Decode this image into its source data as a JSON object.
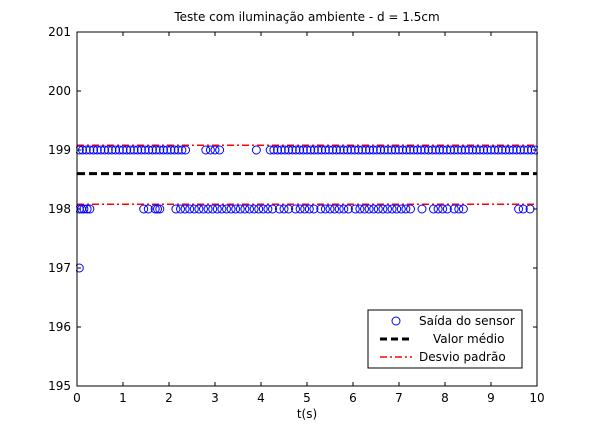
{
  "chart_data": {
    "type": "scatter",
    "title": "Teste com iluminação ambiente - d = 1.5cm",
    "xlabel": "t(s)",
    "ylabel": "",
    "xlim": [
      0,
      10
    ],
    "ylim": [
      195,
      201
    ],
    "xticks": [
      0,
      1,
      2,
      3,
      4,
      5,
      6,
      7,
      8,
      9,
      10
    ],
    "yticks": [
      195,
      196,
      197,
      198,
      199,
      200,
      201
    ],
    "grid": false,
    "legend_position": "bottom-right",
    "series": [
      {
        "name": "Saída do sensor",
        "kind": "markers",
        "marker": "circle",
        "color": "#0000ff",
        "points": [
          {
            "x": 0.05,
            "y": 197
          },
          {
            "x": 0.05,
            "y": 198
          },
          {
            "x": 0.1,
            "y": 198
          },
          {
            "x": 0.15,
            "y": 198
          },
          {
            "x": 0.22,
            "y": 198
          },
          {
            "x": 0.28,
            "y": 198
          },
          {
            "x": 1.45,
            "y": 198
          },
          {
            "x": 1.55,
            "y": 198
          },
          {
            "x": 1.7,
            "y": 198
          },
          {
            "x": 1.75,
            "y": 198
          },
          {
            "x": 1.8,
            "y": 198
          },
          {
            "x": 2.15,
            "y": 198
          },
          {
            "x": 2.25,
            "y": 198
          },
          {
            "x": 2.35,
            "y": 198
          },
          {
            "x": 2.45,
            "y": 198
          },
          {
            "x": 2.55,
            "y": 198
          },
          {
            "x": 2.65,
            "y": 198
          },
          {
            "x": 2.75,
            "y": 198
          },
          {
            "x": 2.85,
            "y": 198
          },
          {
            "x": 2.95,
            "y": 198
          },
          {
            "x": 3.05,
            "y": 198
          },
          {
            "x": 3.15,
            "y": 198
          },
          {
            "x": 3.25,
            "y": 198
          },
          {
            "x": 3.35,
            "y": 198
          },
          {
            "x": 3.45,
            "y": 198
          },
          {
            "x": 3.55,
            "y": 198
          },
          {
            "x": 3.65,
            "y": 198
          },
          {
            "x": 3.75,
            "y": 198
          },
          {
            "x": 3.85,
            "y": 198
          },
          {
            "x": 3.95,
            "y": 198
          },
          {
            "x": 4.05,
            "y": 198
          },
          {
            "x": 4.15,
            "y": 198
          },
          {
            "x": 4.25,
            "y": 198
          },
          {
            "x": 4.4,
            "y": 198
          },
          {
            "x": 4.5,
            "y": 198
          },
          {
            "x": 4.6,
            "y": 198
          },
          {
            "x": 4.75,
            "y": 198
          },
          {
            "x": 4.85,
            "y": 198
          },
          {
            "x": 4.95,
            "y": 198
          },
          {
            "x": 5.05,
            "y": 198
          },
          {
            "x": 5.15,
            "y": 198
          },
          {
            "x": 5.3,
            "y": 198
          },
          {
            "x": 5.4,
            "y": 198
          },
          {
            "x": 5.5,
            "y": 198
          },
          {
            "x": 5.6,
            "y": 198
          },
          {
            "x": 5.7,
            "y": 198
          },
          {
            "x": 5.8,
            "y": 198
          },
          {
            "x": 5.9,
            "y": 198
          },
          {
            "x": 6.05,
            "y": 198
          },
          {
            "x": 6.15,
            "y": 198
          },
          {
            "x": 6.25,
            "y": 198
          },
          {
            "x": 6.35,
            "y": 198
          },
          {
            "x": 6.45,
            "y": 198
          },
          {
            "x": 6.55,
            "y": 198
          },
          {
            "x": 6.65,
            "y": 198
          },
          {
            "x": 6.75,
            "y": 198
          },
          {
            "x": 6.85,
            "y": 198
          },
          {
            "x": 6.95,
            "y": 198
          },
          {
            "x": 7.05,
            "y": 198
          },
          {
            "x": 7.15,
            "y": 198
          },
          {
            "x": 7.25,
            "y": 198
          },
          {
            "x": 7.5,
            "y": 198
          },
          {
            "x": 7.75,
            "y": 198
          },
          {
            "x": 7.85,
            "y": 198
          },
          {
            "x": 7.95,
            "y": 198
          },
          {
            "x": 8.05,
            "y": 198
          },
          {
            "x": 8.2,
            "y": 198
          },
          {
            "x": 8.3,
            "y": 198
          },
          {
            "x": 8.4,
            "y": 198
          },
          {
            "x": 9.6,
            "y": 198
          },
          {
            "x": 9.7,
            "y": 198
          },
          {
            "x": 9.85,
            "y": 198
          },
          {
            "x": 0.05,
            "y": 199
          },
          {
            "x": 0.12,
            "y": 199
          },
          {
            "x": 0.2,
            "y": 199
          },
          {
            "x": 0.28,
            "y": 199
          },
          {
            "x": 0.36,
            "y": 199
          },
          {
            "x": 0.44,
            "y": 199
          },
          {
            "x": 0.52,
            "y": 199
          },
          {
            "x": 0.6,
            "y": 199
          },
          {
            "x": 0.68,
            "y": 199
          },
          {
            "x": 0.76,
            "y": 199
          },
          {
            "x": 0.84,
            "y": 199
          },
          {
            "x": 0.92,
            "y": 199
          },
          {
            "x": 1.0,
            "y": 199
          },
          {
            "x": 1.08,
            "y": 199
          },
          {
            "x": 1.16,
            "y": 199
          },
          {
            "x": 1.24,
            "y": 199
          },
          {
            "x": 1.32,
            "y": 199
          },
          {
            "x": 1.4,
            "y": 199
          },
          {
            "x": 1.48,
            "y": 199
          },
          {
            "x": 1.56,
            "y": 199
          },
          {
            "x": 1.64,
            "y": 199
          },
          {
            "x": 1.72,
            "y": 199
          },
          {
            "x": 1.8,
            "y": 199
          },
          {
            "x": 1.88,
            "y": 199
          },
          {
            "x": 1.96,
            "y": 199
          },
          {
            "x": 2.04,
            "y": 199
          },
          {
            "x": 2.12,
            "y": 199
          },
          {
            "x": 2.2,
            "y": 199
          },
          {
            "x": 2.28,
            "y": 199
          },
          {
            "x": 2.36,
            "y": 199
          },
          {
            "x": 2.8,
            "y": 199
          },
          {
            "x": 2.9,
            "y": 199
          },
          {
            "x": 3.0,
            "y": 199
          },
          {
            "x": 3.1,
            "y": 199
          },
          {
            "x": 3.9,
            "y": 199
          },
          {
            "x": 4.2,
            "y": 199
          },
          {
            "x": 4.28,
            "y": 199
          },
          {
            "x": 4.36,
            "y": 199
          },
          {
            "x": 4.44,
            "y": 199
          },
          {
            "x": 4.52,
            "y": 199
          },
          {
            "x": 4.6,
            "y": 199
          },
          {
            "x": 4.68,
            "y": 199
          },
          {
            "x": 4.76,
            "y": 199
          },
          {
            "x": 4.84,
            "y": 199
          },
          {
            "x": 4.92,
            "y": 199
          },
          {
            "x": 5.0,
            "y": 199
          },
          {
            "x": 5.08,
            "y": 199
          },
          {
            "x": 5.16,
            "y": 199
          },
          {
            "x": 5.24,
            "y": 199
          },
          {
            "x": 5.32,
            "y": 199
          },
          {
            "x": 5.4,
            "y": 199
          },
          {
            "x": 5.48,
            "y": 199
          },
          {
            "x": 5.56,
            "y": 199
          },
          {
            "x": 5.64,
            "y": 199
          },
          {
            "x": 5.72,
            "y": 199
          },
          {
            "x": 5.8,
            "y": 199
          },
          {
            "x": 5.88,
            "y": 199
          },
          {
            "x": 5.96,
            "y": 199
          },
          {
            "x": 6.04,
            "y": 199
          },
          {
            "x": 6.12,
            "y": 199
          },
          {
            "x": 6.2,
            "y": 199
          },
          {
            "x": 6.28,
            "y": 199
          },
          {
            "x": 6.36,
            "y": 199
          },
          {
            "x": 6.44,
            "y": 199
          },
          {
            "x": 6.52,
            "y": 199
          },
          {
            "x": 6.6,
            "y": 199
          },
          {
            "x": 6.68,
            "y": 199
          },
          {
            "x": 6.76,
            "y": 199
          },
          {
            "x": 6.84,
            "y": 199
          },
          {
            "x": 6.92,
            "y": 199
          },
          {
            "x": 7.0,
            "y": 199
          },
          {
            "x": 7.08,
            "y": 199
          },
          {
            "x": 7.16,
            "y": 199
          },
          {
            "x": 7.24,
            "y": 199
          },
          {
            "x": 7.32,
            "y": 199
          },
          {
            "x": 7.4,
            "y": 199
          },
          {
            "x": 7.48,
            "y": 199
          },
          {
            "x": 7.56,
            "y": 199
          },
          {
            "x": 7.64,
            "y": 199
          },
          {
            "x": 7.72,
            "y": 199
          },
          {
            "x": 7.8,
            "y": 199
          },
          {
            "x": 7.88,
            "y": 199
          },
          {
            "x": 7.96,
            "y": 199
          },
          {
            "x": 8.04,
            "y": 199
          },
          {
            "x": 8.12,
            "y": 199
          },
          {
            "x": 8.2,
            "y": 199
          },
          {
            "x": 8.28,
            "y": 199
          },
          {
            "x": 8.36,
            "y": 199
          },
          {
            "x": 8.44,
            "y": 199
          },
          {
            "x": 8.52,
            "y": 199
          },
          {
            "x": 8.6,
            "y": 199
          },
          {
            "x": 8.68,
            "y": 199
          },
          {
            "x": 8.76,
            "y": 199
          },
          {
            "x": 8.84,
            "y": 199
          },
          {
            "x": 8.92,
            "y": 199
          },
          {
            "x": 9.0,
            "y": 199
          },
          {
            "x": 9.08,
            "y": 199
          },
          {
            "x": 9.16,
            "y": 199
          },
          {
            "x": 9.24,
            "y": 199
          },
          {
            "x": 9.32,
            "y": 199
          },
          {
            "x": 9.4,
            "y": 199
          },
          {
            "x": 9.48,
            "y": 199
          },
          {
            "x": 9.56,
            "y": 199
          },
          {
            "x": 9.64,
            "y": 199
          },
          {
            "x": 9.72,
            "y": 199
          },
          {
            "x": 9.8,
            "y": 199
          },
          {
            "x": 9.88,
            "y": 199
          },
          {
            "x": 9.96,
            "y": 199
          }
        ]
      },
      {
        "name": "Valor médio",
        "kind": "hline",
        "style": "dashed",
        "color": "#000000",
        "y": 198.6
      },
      {
        "name": "Desvio padrão",
        "kind": "hlines",
        "style": "dashdot",
        "color": "#ff0000",
        "y": [
          198.08,
          199.08
        ]
      }
    ]
  }
}
